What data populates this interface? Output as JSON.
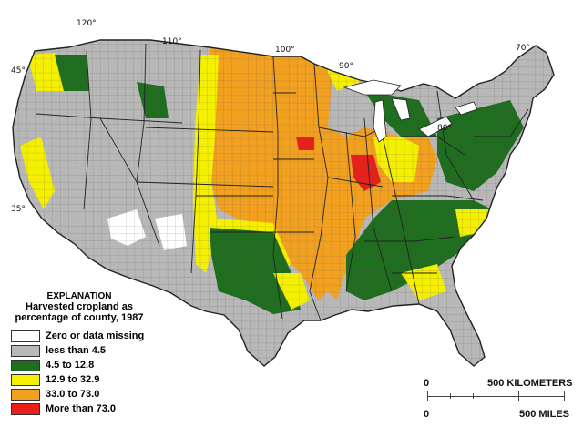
{
  "map": {
    "colors": {
      "zero": "#ffffff",
      "low": "#b8b8b8",
      "mid": "#1f6e1f",
      "high": "#f4f000",
      "very_high": "#f2a020",
      "max": "#e8201a",
      "border": "#333333"
    },
    "longitude_labels": [
      "120°",
      "110°",
      "100°",
      "90°",
      "80°",
      "70°"
    ],
    "latitude_labels": [
      "45°",
      "35°"
    ]
  },
  "explanation": {
    "title": "EXPLANATION",
    "subtitle_line1": "Harvested cropland as",
    "subtitle_line2": "percentage of county, 1987",
    "legend": [
      {
        "label": "Zero or data missing",
        "color": "#ffffff"
      },
      {
        "label": "less than 4.5",
        "color": "#b8b8b8"
      },
      {
        "label": "4.5 to 12.8",
        "color": "#1f6e1f"
      },
      {
        "label": "12.9 to 32.9",
        "color": "#f4f000"
      },
      {
        "label": "33.0 to 73.0",
        "color": "#f2a020"
      },
      {
        "label": "More than 73.0",
        "color": "#e8201a"
      }
    ]
  },
  "scale": {
    "km_zero": "0",
    "km_label": "500 KILOMETERS",
    "mi_zero": "0",
    "mi_label": "500 MILES"
  }
}
